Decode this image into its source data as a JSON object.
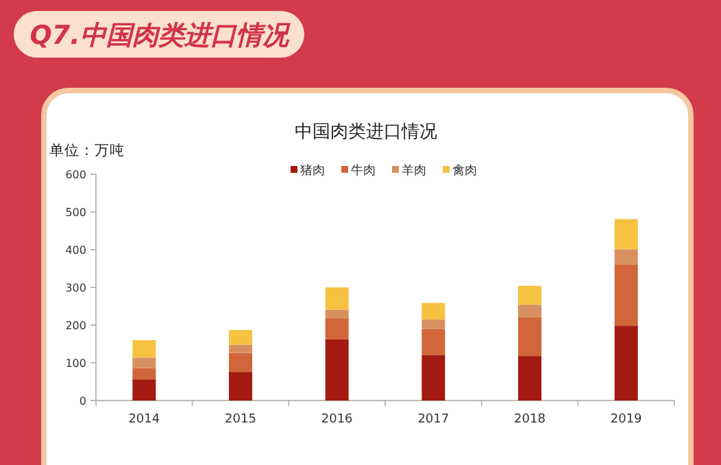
{
  "chart_data": {
    "type": "bar",
    "title": "中国肉类进口情况",
    "ylabel": "单位：万吨",
    "annotations": [
      "Q7.中国肉类进口情况"
    ],
    "categories": [
      "2014",
      "2015",
      "2016",
      "2017",
      "2018",
      "2019"
    ],
    "stacked": true,
    "ylim": [
      0,
      600
    ],
    "yticks": [
      0,
      100,
      200,
      300,
      400,
      500,
      600
    ],
    "legend": "top",
    "series": [
      {
        "name": "猪肉",
        "color": "#a31a10",
        "values": [
          56,
          76,
          162,
          121,
          118,
          198
        ]
      },
      {
        "name": "牛肉",
        "color": "#d0663a",
        "values": [
          30,
          50,
          56,
          69,
          102,
          162
        ]
      },
      {
        "name": "羊肉",
        "color": "#d89060",
        "values": [
          28,
          22,
          23,
          25,
          34,
          41
        ]
      },
      {
        "name": "禽肉",
        "color": "#f5c242",
        "values": [
          46,
          39,
          59,
          44,
          50,
          80
        ]
      }
    ]
  }
}
